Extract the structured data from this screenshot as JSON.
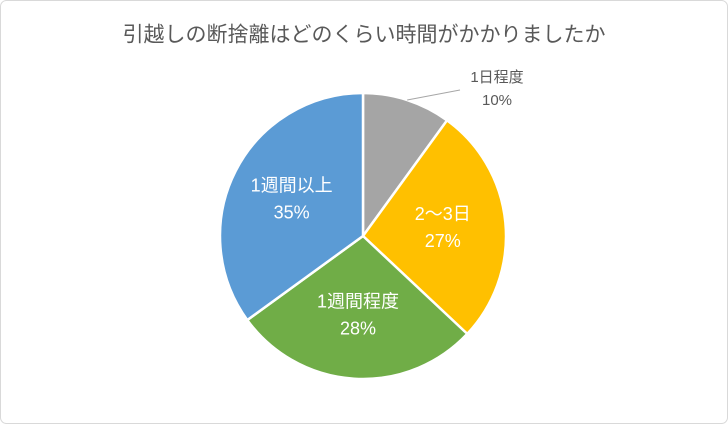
{
  "chart_data": {
    "type": "pie",
    "title": "引越しの断捨離はどのくらい時間がかかりましたか",
    "categories": [
      "1日程度",
      "2〜3日",
      "1週間程度",
      "1週間以上"
    ],
    "values": [
      10,
      27,
      28,
      35
    ],
    "value_labels": [
      "10%",
      "27%",
      "28%",
      "35%"
    ],
    "colors": [
      "#a5a5a5",
      "#ffc000",
      "#70ad47",
      "#5b9bd5"
    ]
  }
}
